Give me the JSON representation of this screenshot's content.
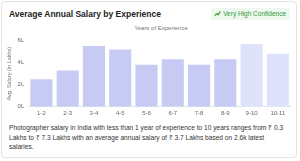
{
  "chart_data": {
    "type": "bar",
    "title": "Average Annual Salary by Experience",
    "badge": "Very High Confidence",
    "x_label": "Years of Experience",
    "y_label": "Avg. Salary (in Lakhs)",
    "categories": [
      "1-2",
      "2-3",
      "3-4",
      "4-5",
      "5-6",
      "6-7",
      "7-8",
      "8-9",
      "9-10",
      "10-11"
    ],
    "values": [
      2.5,
      3.3,
      5.5,
      5.2,
      3.8,
      4.3,
      3.8,
      4.3,
      5.7,
      4.8
    ],
    "colors": [
      "#c7cbf3",
      "#c7cbf3",
      "#c7cbf3",
      "#c7cbf3",
      "#c7cbf3",
      "#c7cbf3",
      "#c7cbf3",
      "#c7cbf3",
      "#dfe2fb",
      "#dfe2fb"
    ],
    "ylim": [
      0,
      6
    ],
    "yticks": [
      {
        "value": 0,
        "label": "0L"
      },
      {
        "value": 2,
        "label": "2L"
      },
      {
        "value": 4,
        "label": "4L"
      },
      {
        "value": 6,
        "label": "6L"
      }
    ],
    "grid": false
  },
  "description": "Photographer salary in India with less than 1 year of experience to 10 years ranges from ₹ 0.3 Lakhs to ₹ 7.3 Lakhs with an average annual salary of ₹ 3.7 Lakhs based on 2.6k latest salaries."
}
